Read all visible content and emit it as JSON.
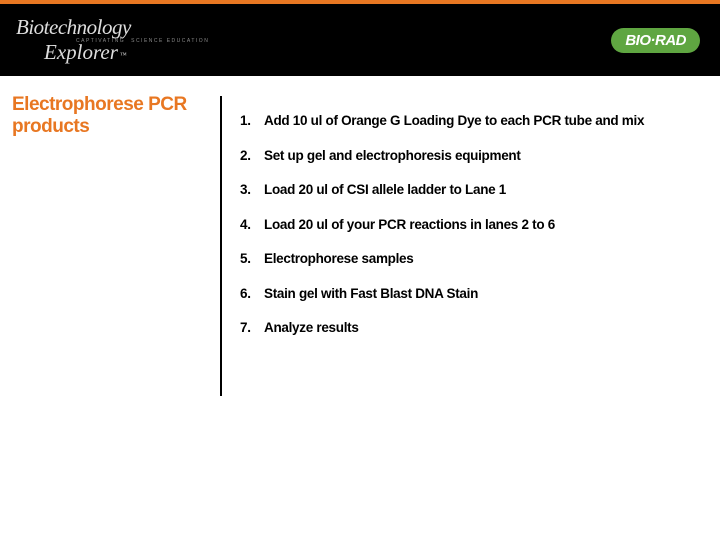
{
  "colors": {
    "accent": "#e87722",
    "header_bg": "#000000",
    "badge_bg": "#5fa641",
    "text": "#000000",
    "logo_text": "#dddddd",
    "logo_sub": "#888888"
  },
  "header": {
    "logo_line1": "Biotechnology",
    "logo_sub1": "CAPTIVATING",
    "logo_sub2": "SCIENCE EDUCATION",
    "logo_line2": "Explorer",
    "logo_tm": "™",
    "badge_text": "BIO·RAD"
  },
  "section_title": "Electrophorese PCR products",
  "steps": [
    {
      "n": "1.",
      "t": "Add 10 ul of Orange G Loading Dye to each PCR tube and mix"
    },
    {
      "n": "2.",
      "t": "Set up gel and electrophoresis equipment"
    },
    {
      "n": "3.",
      "t": "Load 20 ul of CSI allele ladder to Lane 1"
    },
    {
      "n": "4.",
      "t": "Load 20 ul of your PCR reactions in lanes 2 to 6"
    },
    {
      "n": "5.",
      "t": "Electrophorese samples"
    },
    {
      "n": "6.",
      "t": "Stain gel with Fast Blast DNA Stain"
    },
    {
      "n": "7.",
      "t": "Analyze results"
    }
  ]
}
